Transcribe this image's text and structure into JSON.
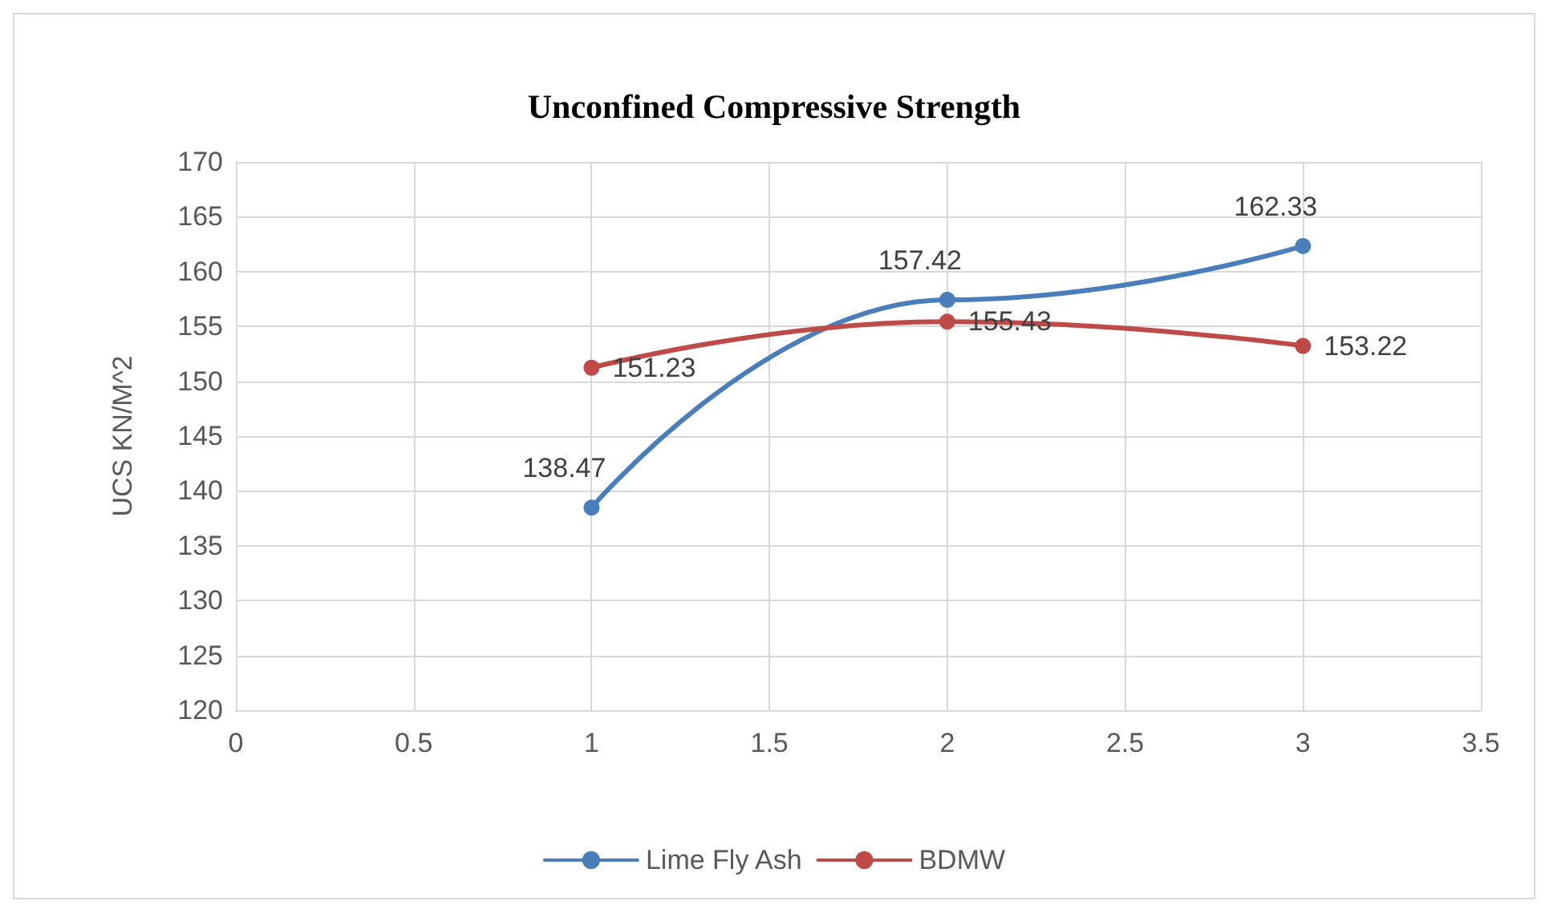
{
  "chart_data": {
    "type": "line",
    "title": "Unconfined Compressive Strength",
    "ylabel": "UCS KN/M^2",
    "x": [
      1,
      2,
      3
    ],
    "series": [
      {
        "name": "Lime Fly Ash",
        "color": "#4a7ebb",
        "values": [
          138.47,
          157.42,
          162.33
        ]
      },
      {
        "name": "BDMW",
        "color": "#be4b48",
        "values": [
          151.23,
          155.43,
          153.22
        ]
      }
    ],
    "xlim": [
      0,
      3.5
    ],
    "xticks": [
      0,
      0.5,
      1,
      1.5,
      2,
      2.5,
      3,
      3.5
    ],
    "ylim": [
      120,
      170
    ],
    "yticks": [
      120,
      125,
      130,
      135,
      140,
      145,
      150,
      155,
      160,
      165,
      170
    ],
    "grid": true,
    "legend": "bottom",
    "marker": "circle",
    "line_style": "solid",
    "data_labels": true
  }
}
